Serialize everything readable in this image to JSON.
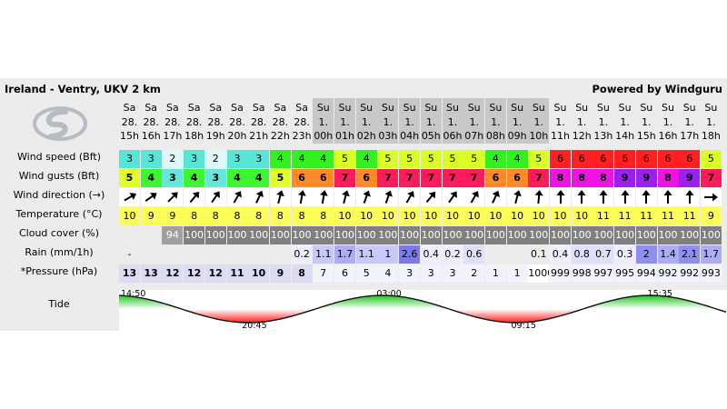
{
  "header": {
    "title": "Ireland - Ventry, UKV 2 km",
    "powered_by": "Powered by Windguru"
  },
  "labels": {
    "wind_speed": "Wind speed (Bft)",
    "wind_gusts": "Wind gusts (Bft)",
    "wind_direction": "Wind direction (→)",
    "temperature": "Temperature (°C)",
    "cloud_cover": "Cloud cover (%)",
    "rain": "Rain (mm/1h)",
    "pressure": "*Pressure (hPa)",
    "tide": "Tide"
  },
  "columns": [
    {
      "day": "Sa",
      "date": "28.",
      "hour": "15h",
      "speed": "3",
      "gusts": "5",
      "dir_deg": 60,
      "temp": "10",
      "cloud": "",
      "rain": "-",
      "press": "13"
    },
    {
      "day": "Sa",
      "date": "28.",
      "hour": "16h",
      "speed": "3",
      "gusts": "4",
      "dir_deg": 55,
      "temp": "9",
      "cloud": "",
      "rain": "",
      "press": "13"
    },
    {
      "day": "Sa",
      "date": "28.",
      "hour": "17h",
      "speed": "2",
      "gusts": "3",
      "dir_deg": 45,
      "temp": "9",
      "cloud": "94",
      "rain": "",
      "press": "12"
    },
    {
      "day": "Sa",
      "date": "28.",
      "hour": "18h",
      "speed": "3",
      "gusts": "4",
      "dir_deg": 40,
      "temp": "8",
      "cloud": "100",
      "rain": "",
      "press": "12"
    },
    {
      "day": "Sa",
      "date": "28.",
      "hour": "19h",
      "speed": "2",
      "gusts": "3",
      "dir_deg": 35,
      "temp": "8",
      "cloud": "100",
      "rain": "",
      "press": "12"
    },
    {
      "day": "Sa",
      "date": "28.",
      "hour": "20h",
      "speed": "3",
      "gusts": "4",
      "dir_deg": 30,
      "temp": "8",
      "cloud": "100",
      "rain": "",
      "press": "11"
    },
    {
      "day": "Sa",
      "date": "28.",
      "hour": "21h",
      "speed": "3",
      "gusts": "4",
      "dir_deg": 25,
      "temp": "8",
      "cloud": "100",
      "rain": "",
      "press": "10"
    },
    {
      "day": "Sa",
      "date": "28.",
      "hour": "22h",
      "speed": "4",
      "gusts": "5",
      "dir_deg": 15,
      "temp": "8",
      "cloud": "100",
      "rain": "",
      "press": "9"
    },
    {
      "day": "Sa",
      "date": "28.",
      "hour": "23h",
      "speed": "4",
      "gusts": "6",
      "dir_deg": 10,
      "temp": "8",
      "cloud": "100",
      "rain": "0.2",
      "press": "8"
    },
    {
      "day": "Su",
      "date": "1.",
      "hour": "00h",
      "speed": "4",
      "gusts": "6",
      "dir_deg": 10,
      "temp": "8",
      "cloud": "100",
      "rain": "1.1",
      "press": "7"
    },
    {
      "day": "Su",
      "date": "1.",
      "hour": "01h",
      "speed": "5",
      "gusts": "7",
      "dir_deg": 15,
      "temp": "10",
      "cloud": "100",
      "rain": "1.7",
      "press": "6"
    },
    {
      "day": "Su",
      "date": "1.",
      "hour": "02h",
      "speed": "4",
      "gusts": "6",
      "dir_deg": 20,
      "temp": "10",
      "cloud": "100",
      "rain": "1.1",
      "press": "5"
    },
    {
      "day": "Su",
      "date": "1.",
      "hour": "03h",
      "speed": "5",
      "gusts": "7",
      "dir_deg": 20,
      "temp": "10",
      "cloud": "100",
      "rain": "1",
      "press": "4"
    },
    {
      "day": "Su",
      "date": "1.",
      "hour": "04h",
      "speed": "5",
      "gusts": "7",
      "dir_deg": 30,
      "temp": "10",
      "cloud": "100",
      "rain": "2.6",
      "press": "3"
    },
    {
      "day": "Su",
      "date": "1.",
      "hour": "05h",
      "speed": "5",
      "gusts": "7",
      "dir_deg": 40,
      "temp": "10",
      "cloud": "100",
      "rain": "0.4",
      "press": "3"
    },
    {
      "day": "Su",
      "date": "1.",
      "hour": "06h",
      "speed": "5",
      "gusts": "7",
      "dir_deg": 35,
      "temp": "10",
      "cloud": "100",
      "rain": "0.2",
      "press": "3"
    },
    {
      "day": "Su",
      "date": "1.",
      "hour": "07h",
      "speed": "5",
      "gusts": "7",
      "dir_deg": 30,
      "temp": "10",
      "cloud": "100",
      "rain": "0.6",
      "press": "2"
    },
    {
      "day": "Su",
      "date": "1.",
      "hour": "08h",
      "speed": "4",
      "gusts": "6",
      "dir_deg": 25,
      "temp": "10",
      "cloud": "100",
      "rain": "",
      "press": "1"
    },
    {
      "day": "Su",
      "date": "1.",
      "hour": "09h",
      "speed": "4",
      "gusts": "6",
      "dir_deg": 15,
      "temp": "10",
      "cloud": "100",
      "rain": "",
      "press": "1"
    },
    {
      "day": "Su",
      "date": "1.",
      "hour": "10h",
      "speed": "5",
      "gusts": "7",
      "dir_deg": 5,
      "temp": "10",
      "cloud": "100",
      "rain": "0.1",
      "press": "1000"
    },
    {
      "day": "Su",
      "date": "1.",
      "hour": "11h",
      "speed": "6",
      "gusts": "8",
      "dir_deg": 0,
      "temp": "10",
      "cloud": "100",
      "rain": "0.4",
      "press": "999"
    },
    {
      "day": "Su",
      "date": "1.",
      "hour": "12h",
      "speed": "6",
      "gusts": "8",
      "dir_deg": 0,
      "temp": "10",
      "cloud": "100",
      "rain": "0.8",
      "press": "998"
    },
    {
      "day": "Su",
      "date": "1.",
      "hour": "13h",
      "speed": "6",
      "gusts": "8",
      "dir_deg": 0,
      "temp": "11",
      "cloud": "100",
      "rain": "0.7",
      "press": "997"
    },
    {
      "day": "Su",
      "date": "1.",
      "hour": "14h",
      "speed": "6",
      "gusts": "9",
      "dir_deg": 0,
      "temp": "11",
      "cloud": "100",
      "rain": "0.3",
      "press": "995"
    },
    {
      "day": "Su",
      "date": "1.",
      "hour": "15h",
      "speed": "6",
      "gusts": "9",
      "dir_deg": 0,
      "temp": "11",
      "cloud": "100",
      "rain": "2",
      "press": "994"
    },
    {
      "day": "Su",
      "date": "1.",
      "hour": "16h",
      "speed": "6",
      "gusts": "8",
      "dir_deg": 0,
      "temp": "11",
      "cloud": "100",
      "rain": "1.4",
      "press": "992"
    },
    {
      "day": "Su",
      "date": "1.",
      "hour": "17h",
      "speed": "6",
      "gusts": "9",
      "dir_deg": 0,
      "temp": "11",
      "cloud": "100",
      "rain": "2.1",
      "press": "992"
    },
    {
      "day": "Su",
      "date": "1.",
      "hour": "18h",
      "speed": "5",
      "gusts": "7",
      "dir_deg": 90,
      "temp": "9",
      "cloud": "100",
      "rain": "1.7",
      "press": "993"
    }
  ],
  "tide": {
    "labels": [
      {
        "text": "14:50",
        "kind": "high",
        "hour": -0.2
      },
      {
        "text": "20:45",
        "kind": "low",
        "hour": 5.75
      },
      {
        "text": "03:00",
        "kind": "high",
        "hour": 12.0
      },
      {
        "text": "09:15",
        "kind": "low",
        "hour": 18.25
      },
      {
        "text": "15:35",
        "kind": "high",
        "hour": 24.58
      }
    ]
  },
  "colors": {
    "header_bg": "#ececec",
    "night_header": "#c8c8c8",
    "high_tide": "#1fc41f",
    "low_tide": "#ff1f1f"
  }
}
